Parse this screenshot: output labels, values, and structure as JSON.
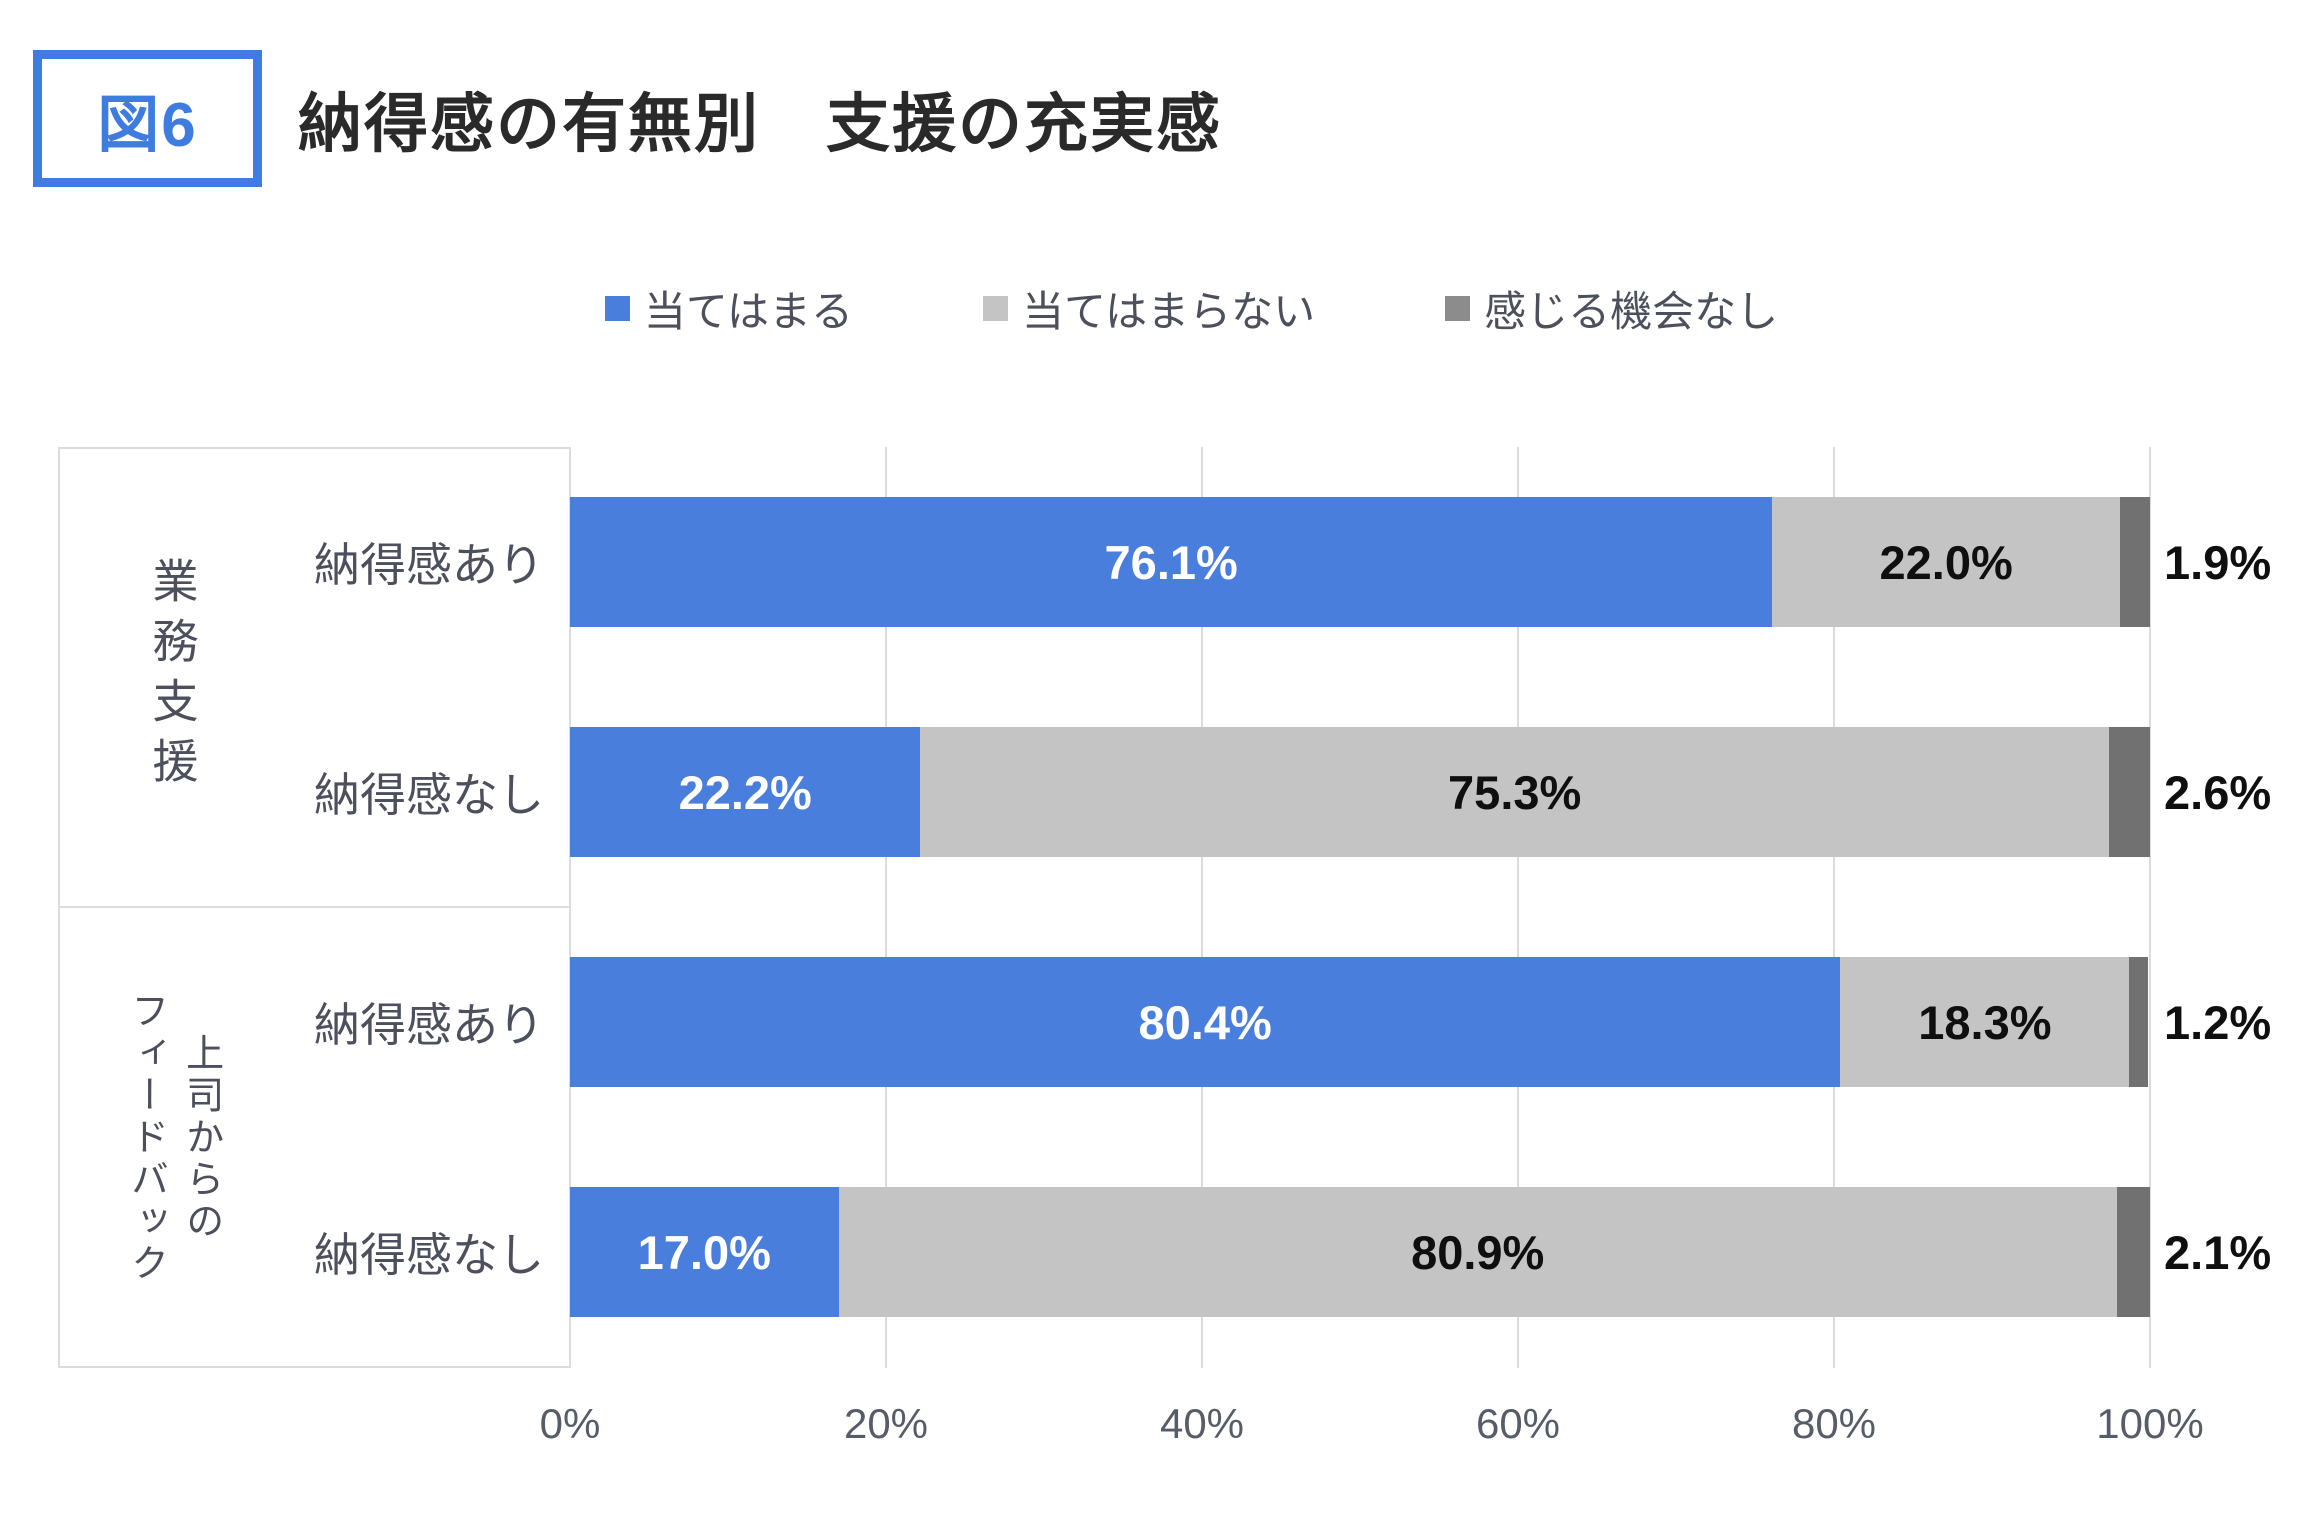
{
  "figure_badge": "図6",
  "title": "納得感の有無別　支援の充実感",
  "colors": {
    "accent_blue": "#3e7ce0",
    "series_agree": "#4a7edc",
    "series_disagree": "#c4c4c4",
    "series_no_opportunity": "#717171",
    "grid_border": "#dcdcdc",
    "label_text": "#4b505c",
    "axis_text": "#565d68"
  },
  "legend": {
    "items": [
      {
        "label": "当てはまる",
        "color": "#4a7edc"
      },
      {
        "label": "当てはまらない",
        "color": "#c4c4c4"
      },
      {
        "label": "感じる機会なし",
        "color": "#8c8c8c"
      }
    ]
  },
  "chart_data": {
    "type": "bar",
    "orientation": "horizontal",
    "stacked": true,
    "title": "納得感の有無別　支援の充実感",
    "legend_position": "top",
    "value_unit": "%",
    "series": [
      {
        "name": "当てはまる",
        "color": "#4a7edc"
      },
      {
        "name": "当てはまらない",
        "color": "#c4c4c4"
      },
      {
        "name": "感じる機会なし",
        "color": "#717171"
      }
    ],
    "groups": [
      {
        "label": "業務支援",
        "label_lines": [
          "業務支援"
        ],
        "rows": [
          {
            "category": "納得感あり",
            "values": [
              76.1,
              22.0,
              1.9
            ],
            "labels": [
              "76.1%",
              "22.0%",
              "1.9%"
            ]
          },
          {
            "category": "納得感なし",
            "values": [
              22.2,
              75.3,
              2.6
            ],
            "labels": [
              "22.2%",
              "75.3%",
              "2.6%"
            ]
          }
        ]
      },
      {
        "label": "上司からのフィードバック",
        "label_lines": [
          "上司からの",
          "フィードバック"
        ],
        "rows": [
          {
            "category": "納得感あり",
            "values": [
              80.4,
              18.3,
              1.2
            ],
            "labels": [
              "80.4%",
              "18.3%",
              "1.2%"
            ]
          },
          {
            "category": "納得感なし",
            "values": [
              17.0,
              80.9,
              2.1
            ],
            "labels": [
              "17.0%",
              "80.9%",
              "2.1%"
            ]
          }
        ]
      }
    ],
    "x_axis": {
      "ticks": [
        "0%",
        "20%",
        "40%",
        "60%",
        "80%",
        "100%"
      ],
      "min": 0,
      "max": 100,
      "grid": true
    }
  }
}
